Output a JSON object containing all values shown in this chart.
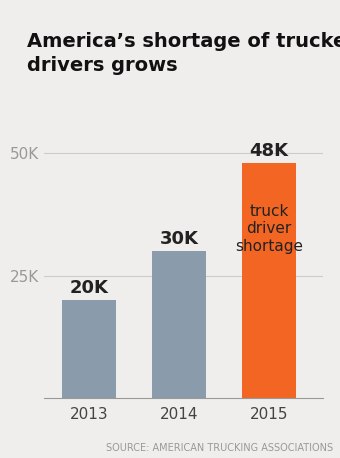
{
  "title": "America’s shortage of trucker\ndrivers grows",
  "categories": [
    "2013",
    "2014",
    "2015"
  ],
  "values": [
    20000,
    30000,
    48000
  ],
  "bar_colors": [
    "#8a9bab",
    "#8a9bab",
    "#f26522"
  ],
  "bar_labels": [
    "20K",
    "30K",
    "48K"
  ],
  "annotation_2015": "truck\ndriver\nshortage",
  "yticks": [
    25000,
    50000
  ],
  "ytick_labels": [
    "25K",
    "50K"
  ],
  "ylim": [
    0,
    55000
  ],
  "source_text": "SOURCE: AMERICAN TRUCKING ASSOCIATIONS",
  "bg_color": "#f0eeec",
  "title_fontsize": 14,
  "bar_label_fontsize": 13,
  "annotation_fontsize": 11,
  "tick_fontsize": 11,
  "source_fontsize": 7
}
